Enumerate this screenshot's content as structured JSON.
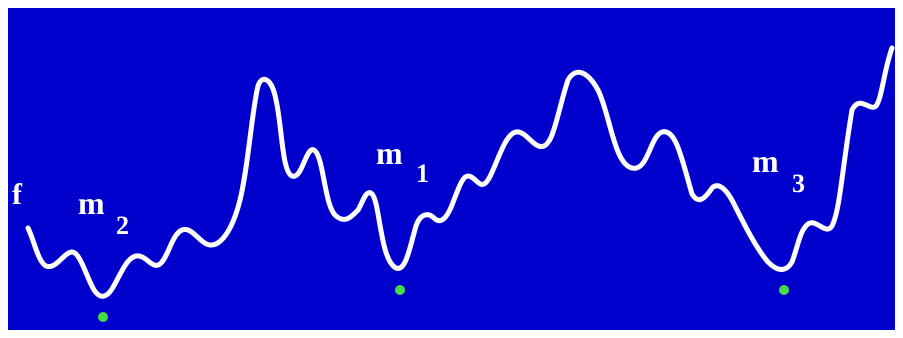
{
  "colors": {
    "background": "#0000cc",
    "curve": "#ffffff",
    "minimum_marker": "#44dd44",
    "label": "#ffffff"
  },
  "labels": {
    "function": "f",
    "minima": [
      {
        "letter": "m",
        "index": "2"
      },
      {
        "letter": "m",
        "index": "1"
      },
      {
        "letter": "m",
        "index": "3"
      }
    ]
  }
}
